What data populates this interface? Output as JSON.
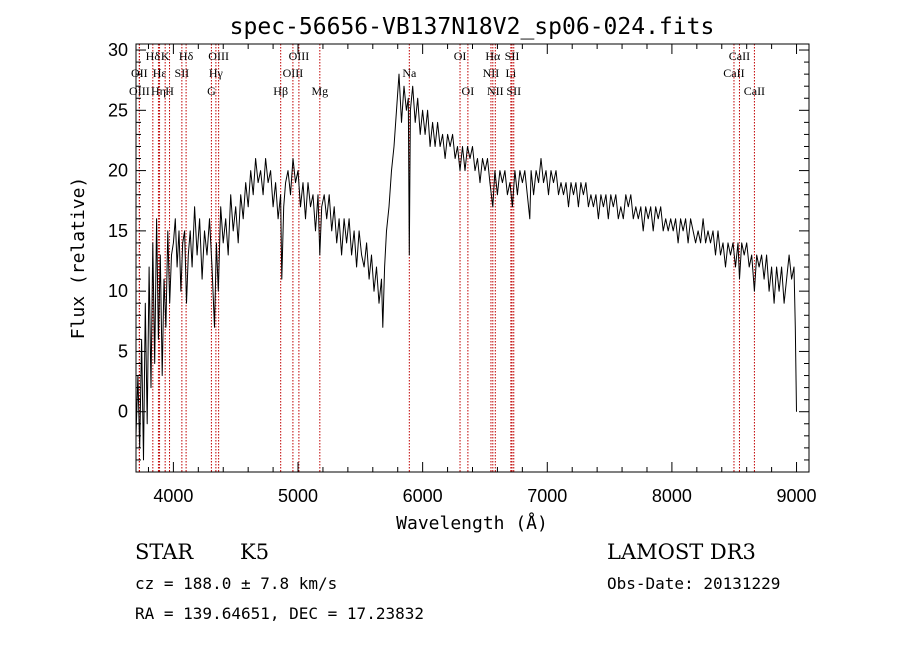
{
  "chart_data": {
    "type": "line",
    "title": "spec-56656-VB137N18V2_sp06-024.fits",
    "xlabel": "Wavelength (Å)",
    "ylabel": "Flux (relative)",
    "xlim": [
      3700,
      9100
    ],
    "ylim": [
      -5,
      30.5
    ],
    "x_ticks": [
      4000,
      5000,
      6000,
      7000,
      8000,
      9000
    ],
    "y_ticks": [
      0,
      5,
      10,
      15,
      20,
      25,
      30
    ],
    "series": [
      {
        "name": "flux",
        "points": [
          [
            3700,
            -2
          ],
          [
            3715,
            3
          ],
          [
            3730,
            -3
          ],
          [
            3745,
            6
          ],
          [
            3760,
            -4
          ],
          [
            3775,
            9
          ],
          [
            3790,
            -1
          ],
          [
            3805,
            12
          ],
          [
            3820,
            2
          ],
          [
            3835,
            14
          ],
          [
            3850,
            4
          ],
          [
            3865,
            16
          ],
          [
            3880,
            6
          ],
          [
            3895,
            13
          ],
          [
            3910,
            3
          ],
          [
            3925,
            11
          ],
          [
            3940,
            7
          ],
          [
            3955,
            15
          ],
          [
            3970,
            9
          ],
          [
            3985,
            13
          ],
          [
            4000,
            14
          ],
          [
            4015,
            16
          ],
          [
            4030,
            12
          ],
          [
            4045,
            15
          ],
          [
            4060,
            10
          ],
          [
            4075,
            14
          ],
          [
            4090,
            15
          ],
          [
            4105,
            9
          ],
          [
            4120,
            13
          ],
          [
            4135,
            15
          ],
          [
            4150,
            12
          ],
          [
            4170,
            17
          ],
          [
            4190,
            13
          ],
          [
            4210,
            16
          ],
          [
            4230,
            11
          ],
          [
            4250,
            15
          ],
          [
            4270,
            13
          ],
          [
            4290,
            16
          ],
          [
            4310,
            12
          ],
          [
            4330,
            7
          ],
          [
            4345,
            14
          ],
          [
            4360,
            10
          ],
          [
            4380,
            17
          ],
          [
            4400,
            14
          ],
          [
            4420,
            16
          ],
          [
            4440,
            13
          ],
          [
            4460,
            18
          ],
          [
            4480,
            15
          ],
          [
            4500,
            17
          ],
          [
            4520,
            14
          ],
          [
            4540,
            18
          ],
          [
            4560,
            16
          ],
          [
            4580,
            19
          ],
          [
            4600,
            17
          ],
          [
            4620,
            20
          ],
          [
            4640,
            18
          ],
          [
            4660,
            21
          ],
          [
            4680,
            19
          ],
          [
            4700,
            20
          ],
          [
            4720,
            18
          ],
          [
            4740,
            21
          ],
          [
            4760,
            19
          ],
          [
            4780,
            20
          ],
          [
            4800,
            17
          ],
          [
            4820,
            19
          ],
          [
            4840,
            16
          ],
          [
            4860,
            18
          ],
          [
            4870,
            11
          ],
          [
            4885,
            17
          ],
          [
            4900,
            19
          ],
          [
            4920,
            20
          ],
          [
            4940,
            18
          ],
          [
            4960,
            21
          ],
          [
            4980,
            19
          ],
          [
            5000,
            20
          ],
          [
            5020,
            17
          ],
          [
            5040,
            19
          ],
          [
            5060,
            16
          ],
          [
            5080,
            19
          ],
          [
            5100,
            17
          ],
          [
            5120,
            18
          ],
          [
            5140,
            15
          ],
          [
            5160,
            18
          ],
          [
            5175,
            13
          ],
          [
            5190,
            17
          ],
          [
            5210,
            18
          ],
          [
            5230,
            16
          ],
          [
            5250,
            18
          ],
          [
            5270,
            15
          ],
          [
            5290,
            17
          ],
          [
            5310,
            14
          ],
          [
            5330,
            16
          ],
          [
            5350,
            13
          ],
          [
            5370,
            16
          ],
          [
            5390,
            14
          ],
          [
            5410,
            16
          ],
          [
            5430,
            13
          ],
          [
            5450,
            15
          ],
          [
            5470,
            12
          ],
          [
            5490,
            15
          ],
          [
            5510,
            13
          ],
          [
            5530,
            12
          ],
          [
            5550,
            14
          ],
          [
            5570,
            11
          ],
          [
            5590,
            13
          ],
          [
            5610,
            10
          ],
          [
            5630,
            12
          ],
          [
            5650,
            9
          ],
          [
            5670,
            11
          ],
          [
            5680,
            7
          ],
          [
            5695,
            12
          ],
          [
            5710,
            15
          ],
          [
            5730,
            17
          ],
          [
            5750,
            20
          ],
          [
            5770,
            22
          ],
          [
            5790,
            25
          ],
          [
            5810,
            28
          ],
          [
            5830,
            24
          ],
          [
            5850,
            27
          ],
          [
            5870,
            25
          ],
          [
            5885,
            26
          ],
          [
            5893,
            13
          ],
          [
            5902,
            25
          ],
          [
            5920,
            27
          ],
          [
            5940,
            24
          ],
          [
            5960,
            26
          ],
          [
            5980,
            23
          ],
          [
            6000,
            25
          ],
          [
            6020,
            23
          ],
          [
            6040,
            25
          ],
          [
            6060,
            22
          ],
          [
            6080,
            24
          ],
          [
            6100,
            22
          ],
          [
            6120,
            24
          ],
          [
            6140,
            22
          ],
          [
            6160,
            23
          ],
          [
            6180,
            21
          ],
          [
            6200,
            23
          ],
          [
            6220,
            22
          ],
          [
            6240,
            23
          ],
          [
            6260,
            21
          ],
          [
            6280,
            22
          ],
          [
            6300,
            20
          ],
          [
            6320,
            22
          ],
          [
            6340,
            20
          ],
          [
            6360,
            22
          ],
          [
            6380,
            21
          ],
          [
            6400,
            22
          ],
          [
            6420,
            20
          ],
          [
            6440,
            21
          ],
          [
            6460,
            19
          ],
          [
            6480,
            21
          ],
          [
            6500,
            20
          ],
          [
            6520,
            21
          ],
          [
            6540,
            19
          ],
          [
            6563,
            17
          ],
          [
            6580,
            20
          ],
          [
            6600,
            18
          ],
          [
            6620,
            20
          ],
          [
            6640,
            19
          ],
          [
            6660,
            20
          ],
          [
            6680,
            18
          ],
          [
            6700,
            19
          ],
          [
            6720,
            17
          ],
          [
            6740,
            20
          ],
          [
            6760,
            18
          ],
          [
            6780,
            20
          ],
          [
            6800,
            19
          ],
          [
            6820,
            20
          ],
          [
            6840,
            18
          ],
          [
            6860,
            16
          ],
          [
            6870,
            20
          ],
          [
            6890,
            18
          ],
          [
            6910,
            20
          ],
          [
            6930,
            19
          ],
          [
            6950,
            21
          ],
          [
            6970,
            19
          ],
          [
            6990,
            20
          ],
          [
            7010,
            18
          ],
          [
            7030,
            20
          ],
          [
            7050,
            19
          ],
          [
            7070,
            20
          ],
          [
            7090,
            18
          ],
          [
            7110,
            19
          ],
          [
            7130,
            18
          ],
          [
            7150,
            19
          ],
          [
            7170,
            17
          ],
          [
            7190,
            19
          ],
          [
            7210,
            18
          ],
          [
            7230,
            19
          ],
          [
            7250,
            17
          ],
          [
            7270,
            19
          ],
          [
            7290,
            18
          ],
          [
            7310,
            19
          ],
          [
            7330,
            17
          ],
          [
            7350,
            18
          ],
          [
            7370,
            17
          ],
          [
            7390,
            18
          ],
          [
            7410,
            16
          ],
          [
            7430,
            18
          ],
          [
            7450,
            17
          ],
          [
            7470,
            18
          ],
          [
            7490,
            16
          ],
          [
            7510,
            18
          ],
          [
            7530,
            17
          ],
          [
            7550,
            18
          ],
          [
            7570,
            16
          ],
          [
            7590,
            17
          ],
          [
            7610,
            16
          ],
          [
            7630,
            18
          ],
          [
            7650,
            17
          ],
          [
            7670,
            18
          ],
          [
            7690,
            16
          ],
          [
            7710,
            17
          ],
          [
            7730,
            16
          ],
          [
            7750,
            17
          ],
          [
            7770,
            15
          ],
          [
            7790,
            17
          ],
          [
            7810,
            16
          ],
          [
            7830,
            17
          ],
          [
            7850,
            15
          ],
          [
            7870,
            17
          ],
          [
            7890,
            16
          ],
          [
            7910,
            17
          ],
          [
            7930,
            15
          ],
          [
            7950,
            16
          ],
          [
            7970,
            15
          ],
          [
            7990,
            16
          ],
          [
            8010,
            15
          ],
          [
            8030,
            16
          ],
          [
            8050,
            14
          ],
          [
            8070,
            16
          ],
          [
            8090,
            15
          ],
          [
            8110,
            16
          ],
          [
            8130,
            14
          ],
          [
            8150,
            16
          ],
          [
            8170,
            15
          ],
          [
            8190,
            14
          ],
          [
            8210,
            15
          ],
          [
            8230,
            14
          ],
          [
            8250,
            16
          ],
          [
            8270,
            14
          ],
          [
            8290,
            15
          ],
          [
            8310,
            14
          ],
          [
            8330,
            15
          ],
          [
            8350,
            13
          ],
          [
            8370,
            15
          ],
          [
            8390,
            13
          ],
          [
            8410,
            14
          ],
          [
            8430,
            12
          ],
          [
            8450,
            14
          ],
          [
            8470,
            13
          ],
          [
            8490,
            14
          ],
          [
            8510,
            12
          ],
          [
            8530,
            14
          ],
          [
            8542,
            11
          ],
          [
            8560,
            14
          ],
          [
            8580,
            13
          ],
          [
            8600,
            14
          ],
          [
            8620,
            12
          ],
          [
            8640,
            13
          ],
          [
            8662,
            10
          ],
          [
            8680,
            13
          ],
          [
            8700,
            12
          ],
          [
            8720,
            13
          ],
          [
            8740,
            11
          ],
          [
            8760,
            13
          ],
          [
            8780,
            10
          ],
          [
            8800,
            12
          ],
          [
            8820,
            9
          ],
          [
            8840,
            12
          ],
          [
            8860,
            10
          ],
          [
            8880,
            12
          ],
          [
            8900,
            9
          ],
          [
            8920,
            11
          ],
          [
            8940,
            13
          ],
          [
            8960,
            11
          ],
          [
            8980,
            12
          ],
          [
            8990,
            7
          ],
          [
            9000,
            0
          ]
        ]
      }
    ],
    "spectral_lines": [
      {
        "label": "Hδ",
        "x": 3835,
        "row": 0
      },
      {
        "label": "OII",
        "x": 3727,
        "row": 1
      },
      {
        "label": "OIII",
        "x": 3727,
        "row": 2
      },
      {
        "label": "Hε",
        "x": 3889,
        "row": 1
      },
      {
        "label": "Hη",
        "x": 3880,
        "row": 2
      },
      {
        "label": "K",
        "x": 3934,
        "row": 0
      },
      {
        "label": "H",
        "x": 3969,
        "row": 2
      },
      {
        "label": "SII",
        "x": 4068,
        "row": 1
      },
      {
        "label": "Hδ",
        "x": 4102,
        "row": 0
      },
      {
        "label": "OIII",
        "x": 4363,
        "row": 0
      },
      {
        "label": "Hγ",
        "x": 4341,
        "row": 1
      },
      {
        "label": "G",
        "x": 4305,
        "row": 2
      },
      {
        "label": "Hβ",
        "x": 4861,
        "row": 2
      },
      {
        "label": "OIII",
        "x": 4959,
        "row": 1
      },
      {
        "label": "OIII",
        "x": 5007,
        "row": 0
      },
      {
        "label": "Mg",
        "x": 5175,
        "row": 2
      },
      {
        "label": "Na",
        "x": 5893,
        "row": 1
      },
      {
        "label": "OI",
        "x": 6300,
        "row": 0
      },
      {
        "label": "OI",
        "x": 6363,
        "row": 2
      },
      {
        "label": "Hα",
        "x": 6563,
        "row": 0
      },
      {
        "label": "NII",
        "x": 6548,
        "row": 1
      },
      {
        "label": "NII",
        "x": 6583,
        "row": 2
      },
      {
        "label": "SII",
        "x": 6717,
        "row": 0
      },
      {
        "label": "Li",
        "x": 6708,
        "row": 1
      },
      {
        "label": "SII",
        "x": 6731,
        "row": 2
      },
      {
        "label": "CaII",
        "x": 8542,
        "row": 0
      },
      {
        "label": "CaII",
        "x": 8498,
        "row": 1
      },
      {
        "label": "CaII",
        "x": 8662,
        "row": 2
      }
    ]
  },
  "info": {
    "object_class": "STAR",
    "subclass": "K5",
    "survey": "LAMOST DR3",
    "cz": "cz = 188.0 ± 7.8 km/s",
    "obs_date": "Obs-Date: 20131229",
    "coords": "RA = 139.64651, DEC =  17.23832"
  },
  "colors": {
    "line": "#000000",
    "marker": "#c00000"
  }
}
